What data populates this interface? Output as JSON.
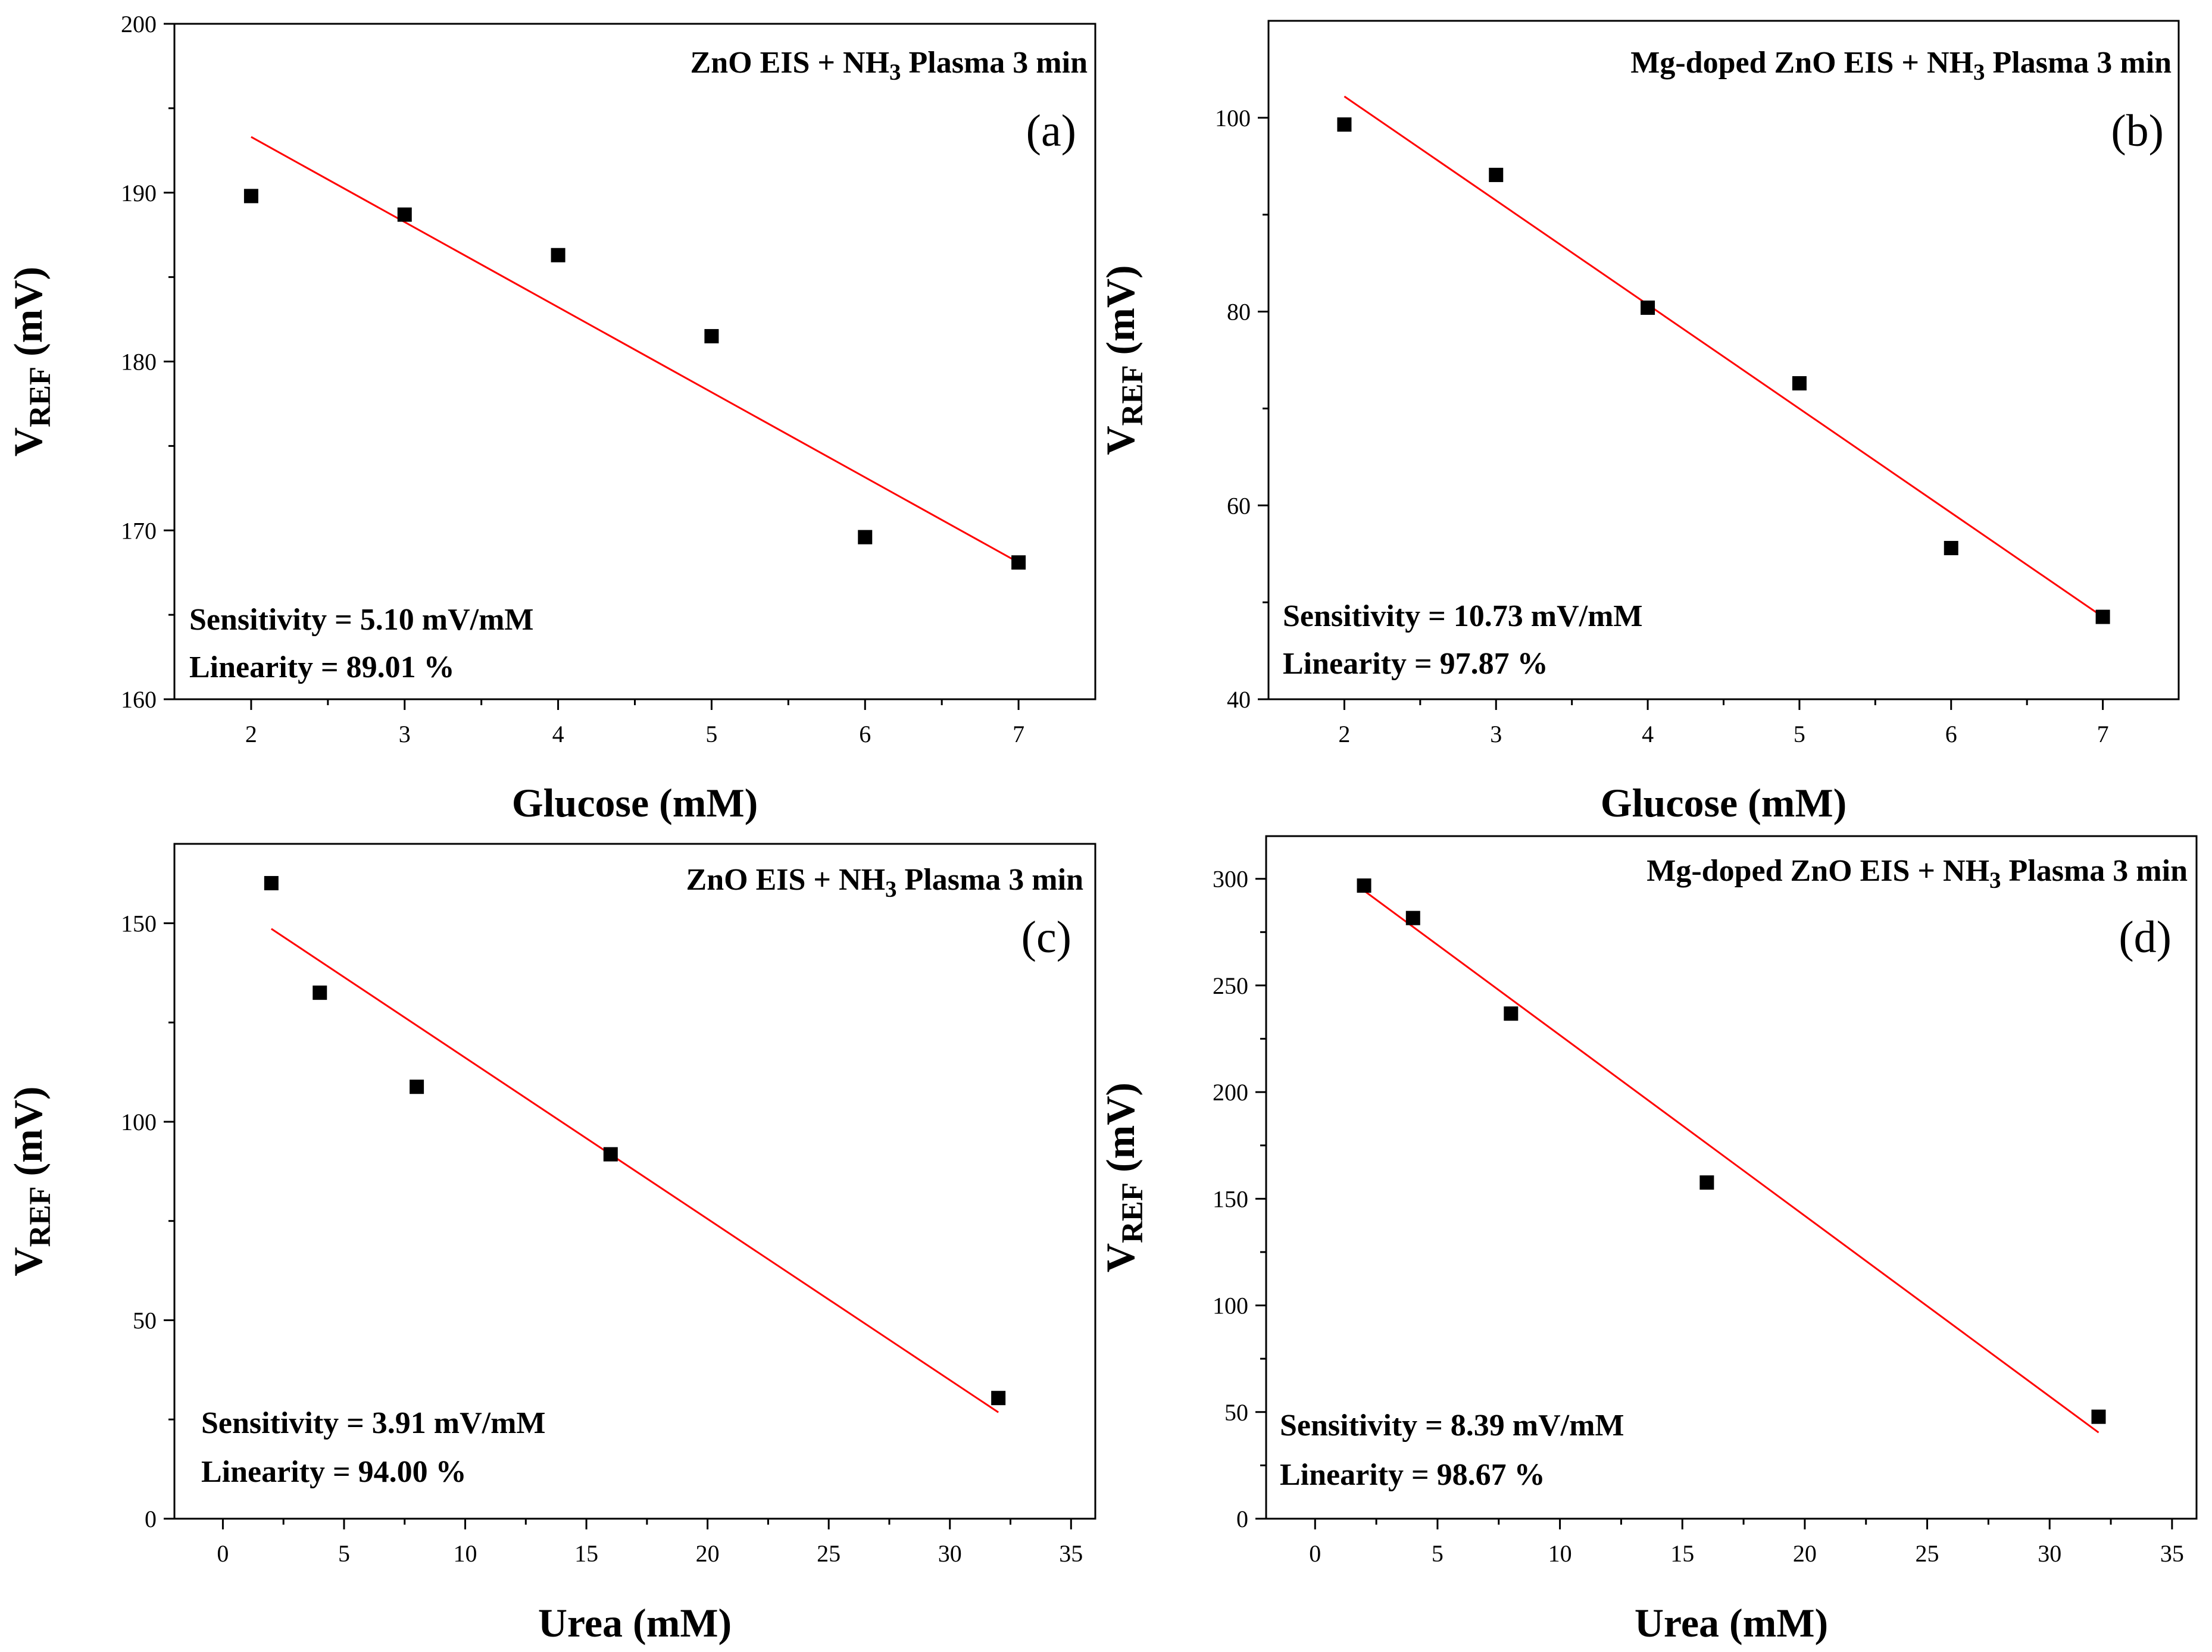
{
  "chart_data": [
    {
      "type": "scatter",
      "panel": "(a)",
      "title": "ZnO EIS + NH3 Plasma 3 min",
      "title_parts": [
        "ZnO EIS + NH",
        "3",
        " Plasma 3 min"
      ],
      "xlabel": "Glucose (mM)",
      "ylabel": "VREF (mV)",
      "ylabel_parts": [
        "V",
        "REF",
        " (mV)"
      ],
      "xlim": [
        1.5,
        7.5
      ],
      "ylim": [
        160,
        200
      ],
      "xticks": [
        2,
        3,
        4,
        5,
        6,
        7
      ],
      "yticks": [
        160,
        170,
        180,
        190,
        200
      ],
      "series": [
        {
          "name": "measured",
          "x": [
            2,
            3,
            4,
            5,
            6,
            7
          ],
          "y": [
            189.8,
            188.7,
            186.3,
            181.5,
            169.6,
            168.1
          ]
        },
        {
          "name": "linear fit",
          "x": [
            2,
            7
          ],
          "y": [
            193.3,
            168.1
          ]
        }
      ],
      "sensitivity": "Sensitivity = 5.10 mV/mM",
      "linearity": "Linearity = 89.01 %"
    },
    {
      "type": "scatter",
      "panel": "(b)",
      "title": "Mg-doped ZnO EIS + NH3 Plasma 3 min",
      "title_parts": [
        "Mg-doped ZnO EIS + NH",
        "3",
        " Plasma 3 min"
      ],
      "xlabel": "Glucose (mM)",
      "ylabel": "VREF (mV)",
      "ylabel_parts": [
        "V",
        "REF",
        " (mV)"
      ],
      "xlim": [
        1.5,
        7.5
      ],
      "ylim": [
        40,
        110
      ],
      "xticks": [
        2,
        3,
        4,
        5,
        6,
        7
      ],
      "yticks": [
        40,
        60,
        80,
        100
      ],
      "series": [
        {
          "name": "measured",
          "x": [
            2,
            3,
            4,
            5,
            6,
            7
          ],
          "y": [
            99.3,
            94.1,
            80.4,
            72.6,
            55.6,
            48.5
          ]
        },
        {
          "name": "linear fit",
          "x": [
            2,
            7
          ],
          "y": [
            102.2,
            48.5
          ]
        }
      ],
      "sensitivity": "Sensitivity = 10.73 mV/mM",
      "linearity": "Linearity = 97.87 %"
    },
    {
      "type": "scatter",
      "panel": "(c)",
      "title": "ZnO EIS + NH3 Plasma 3 min",
      "title_parts": [
        "ZnO EIS + NH",
        "3",
        " Plasma 3 min"
      ],
      "xlabel": "Urea (mM)",
      "ylabel": "VREF (mV)",
      "ylabel_parts": [
        "V",
        "REF",
        " (mV)"
      ],
      "xlim": [
        -2,
        36
      ],
      "ylim": [
        0,
        170
      ],
      "xticks": [
        0,
        5,
        10,
        15,
        20,
        25,
        30,
        35
      ],
      "yticks": [
        0,
        50,
        100,
        150
      ],
      "series": [
        {
          "name": "measured",
          "x": [
            2,
            4,
            8,
            16,
            32
          ],
          "y": [
            160.1,
            132.5,
            108.8,
            91.8,
            30.4
          ]
        },
        {
          "name": "linear fit",
          "x": [
            2,
            32
          ],
          "y": [
            148.6,
            26.8
          ]
        }
      ],
      "sensitivity": "Sensitivity = 3.91 mV/mM",
      "linearity": "Linearity = 94.00 %"
    },
    {
      "type": "scatter",
      "panel": "(d)",
      "title": "Mg-doped ZnO EIS + NH3 Plasma 3 min",
      "title_parts": [
        "Mg-doped ZnO EIS + NH",
        "3",
        " Plasma 3 min"
      ],
      "xlabel": "Urea (mM)",
      "ylabel": "VREF (mV)",
      "ylabel_parts": [
        "V",
        "REF",
        " (mV)"
      ],
      "xlim": [
        -2,
        36
      ],
      "ylim": [
        0,
        320
      ],
      "xticks": [
        0,
        5,
        10,
        15,
        20,
        25,
        30,
        35
      ],
      "yticks": [
        0,
        50,
        100,
        150,
        200,
        250,
        300
      ],
      "series": [
        {
          "name": "measured",
          "x": [
            2,
            4,
            8,
            16,
            32
          ],
          "y": [
            296.8,
            281.6,
            236.8,
            157.6,
            47.8
          ]
        },
        {
          "name": "linear fit",
          "x": [
            2,
            32
          ],
          "y": [
            294.4,
            40.4
          ]
        }
      ],
      "sensitivity": "Sensitivity = 8.39 mV/mM",
      "linearity": "Linearity = 98.67 %"
    }
  ],
  "colors": {
    "fit_line": "#ff0000",
    "marker": "#000000",
    "axis": "#000000"
  }
}
